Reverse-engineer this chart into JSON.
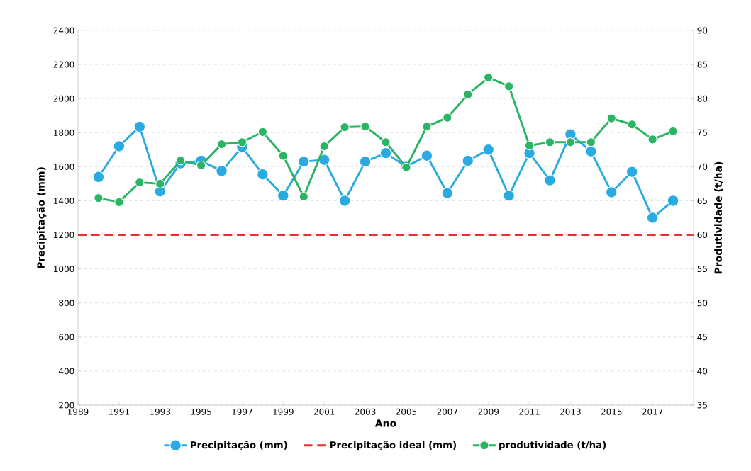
{
  "chart_data": {
    "type": "line",
    "xlabel": "Ano",
    "ylabel": "Precipitação (mm)",
    "y2label": "Produtividade (t/ha)",
    "x": [
      1990,
      1991,
      1992,
      1993,
      1994,
      1995,
      1996,
      1997,
      1998,
      1999,
      2000,
      2001,
      2002,
      2003,
      2004,
      2005,
      2006,
      2007,
      2008,
      2009,
      2010,
      2011,
      2012,
      2013,
      2014,
      2015,
      2016,
      2017,
      2018
    ],
    "series": [
      {
        "name": "Precipitação (mm)",
        "color": "#29abe2",
        "marker": "circle",
        "line_style": "solid",
        "values": [
          1540,
          1720,
          1835,
          1455,
          1620,
          1635,
          1575,
          1715,
          1555,
          1430,
          1630,
          1640,
          1400,
          1630,
          1680,
          1600,
          1665,
          1445,
          1635,
          1700,
          1430,
          1680,
          1520,
          1790,
          1690,
          1450,
          1570,
          1300,
          1400
        ]
      },
      {
        "name": "Precipitação ideal (mm)",
        "color": "#e8312a",
        "marker": "none",
        "line_style": "dashed",
        "x": [
          1989,
          2019
        ],
        "values": [
          1200,
          1200
        ]
      },
      {
        "name": "produtividade (t/ha)",
        "color": "#2ab463",
        "marker": "circle",
        "line_style": "solid",
        "axis": "y2",
        "values": [
          65.4,
          64.8,
          67.7,
          67.5,
          70.9,
          70.2,
          73.3,
          73.6,
          75.1,
          71.6,
          65.6,
          73.0,
          75.8,
          75.9,
          73.6,
          69.9,
          75.9,
          77.2,
          80.6,
          83.1,
          81.8,
          73.1,
          73.6,
          73.6,
          73.6,
          77.1,
          76.2,
          74.0,
          75.2
        ]
      }
    ],
    "xlim": [
      1989,
      2019
    ],
    "xticks": [
      1989,
      1991,
      1993,
      1995,
      1997,
      1999,
      2001,
      2003,
      2005,
      2007,
      2009,
      2011,
      2013,
      2015,
      2017
    ],
    "ylim": [
      200,
      2400
    ],
    "yticks": [
      200,
      400,
      600,
      800,
      1000,
      1200,
      1400,
      1600,
      1800,
      2000,
      2200,
      2400
    ],
    "y2lim": [
      35,
      90
    ],
    "y2ticks": [
      35,
      40,
      45,
      50,
      55,
      60,
      65,
      70,
      75,
      80,
      85,
      90
    ],
    "grid": "y",
    "legend": "bottom"
  }
}
